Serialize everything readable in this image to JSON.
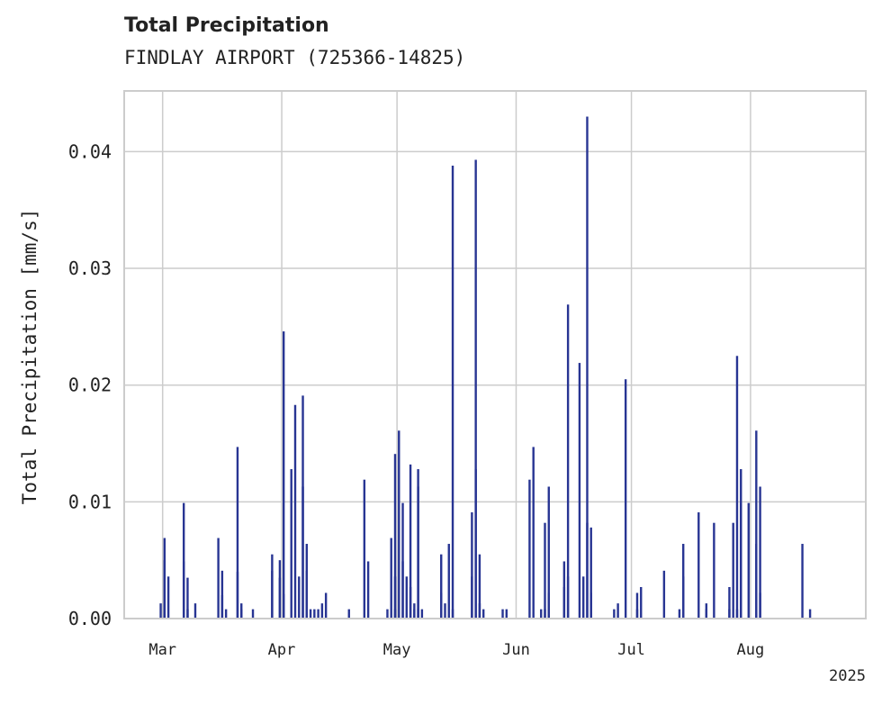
{
  "chart_data": {
    "type": "bar",
    "title": "Total Precipitation",
    "subtitle": "FINDLAY AIRPORT (725366-14825)",
    "ylabel": "Total Precipitation [mm/s]",
    "xlabel": "",
    "year_label": "2025",
    "x_axis": "date",
    "xlim": [
      "2025-02-19",
      "2025-08-31"
    ],
    "ylim": [
      0,
      0.0452
    ],
    "yticks": [
      0.0,
      0.01,
      0.02,
      0.03,
      0.04
    ],
    "ytick_labels": [
      "0.00",
      "0.01",
      "0.02",
      "0.03",
      "0.04"
    ],
    "xticks": [
      "2025-03-01",
      "2025-04-01",
      "2025-05-01",
      "2025-06-01",
      "2025-07-01",
      "2025-08-01"
    ],
    "xtick_labels": [
      "Mar",
      "Apr",
      "May",
      "Jun",
      "Jul",
      "Aug"
    ],
    "grid": true,
    "bar_color": "#283593",
    "series": [
      {
        "points": [
          [
            "2025-02-28",
            0.0013
          ],
          [
            "2025-03-01",
            0.005
          ],
          [
            "2025-03-01",
            0.0069
          ],
          [
            "2025-03-02",
            0.0036
          ],
          [
            "2025-03-06",
            0.0099
          ],
          [
            "2025-03-06",
            0.0049
          ],
          [
            "2025-03-07",
            0.0035
          ],
          [
            "2025-03-07",
            0.0008
          ],
          [
            "2025-03-09",
            0.0013
          ],
          [
            "2025-03-15",
            0.0069
          ],
          [
            "2025-03-16",
            0.0041
          ],
          [
            "2025-03-16",
            0.002
          ],
          [
            "2025-03-17",
            0.0008
          ],
          [
            "2025-03-20",
            0.0147
          ],
          [
            "2025-03-20",
            0.004
          ],
          [
            "2025-03-21",
            0.0013
          ],
          [
            "2025-03-21",
            0.0008
          ],
          [
            "2025-03-24",
            0.0008
          ],
          [
            "2025-03-29",
            0.0041
          ],
          [
            "2025-03-29",
            0.0055
          ],
          [
            "2025-03-31",
            0.005
          ],
          [
            "2025-03-31",
            0.0035
          ],
          [
            "2025-04-01",
            0.0246
          ],
          [
            "2025-04-01",
            0.0021
          ],
          [
            "2025-04-03",
            0.0128
          ],
          [
            "2025-04-04",
            0.0183
          ],
          [
            "2025-04-05",
            0.0036
          ],
          [
            "2025-04-06",
            0.0191
          ],
          [
            "2025-04-06",
            0.0113
          ],
          [
            "2025-04-07",
            0.0064
          ],
          [
            "2025-04-07",
            0.0041
          ],
          [
            "2025-04-08",
            0.0008
          ],
          [
            "2025-04-09",
            0.0008
          ],
          [
            "2025-04-10",
            0.0008
          ],
          [
            "2025-04-11",
            0.0013
          ],
          [
            "2025-04-12",
            0.0022
          ],
          [
            "2025-04-18",
            0.0008
          ],
          [
            "2025-04-22",
            0.0119
          ],
          [
            "2025-04-23",
            0.0049
          ],
          [
            "2025-04-28",
            0.0008
          ],
          [
            "2025-04-29",
            0.0069
          ],
          [
            "2025-04-30",
            0.0141
          ],
          [
            "2025-04-30",
            0.0036
          ],
          [
            "2025-04-30",
            0.0008
          ],
          [
            "2025-05-01",
            0.0161
          ],
          [
            "2025-05-02",
            0.0099
          ],
          [
            "2025-05-02",
            0.0049
          ],
          [
            "2025-05-03",
            0.0036
          ],
          [
            "2025-05-04",
            0.0132
          ],
          [
            "2025-05-04",
            0.0027
          ],
          [
            "2025-05-05",
            0.0008
          ],
          [
            "2025-05-05",
            0.0013
          ],
          [
            "2025-05-06",
            0.0128
          ],
          [
            "2025-05-06",
            0.0113
          ],
          [
            "2025-05-06",
            0.0008
          ],
          [
            "2025-05-07",
            0.0008
          ],
          [
            "2025-05-12",
            0.0055
          ],
          [
            "2025-05-12",
            0.0022
          ],
          [
            "2025-05-13",
            0.0013
          ],
          [
            "2025-05-14",
            0.0064
          ],
          [
            "2025-05-15",
            0.0388
          ],
          [
            "2025-05-15",
            0.0008
          ],
          [
            "2025-05-20",
            0.0036
          ],
          [
            "2025-05-20",
            0.0091
          ],
          [
            "2025-05-21",
            0.0128
          ],
          [
            "2025-05-21",
            0.0393
          ],
          [
            "2025-05-22",
            0.0055
          ],
          [
            "2025-05-22",
            0.0013
          ],
          [
            "2025-05-23",
            0.0008
          ],
          [
            "2025-05-28",
            0.0008
          ],
          [
            "2025-05-29",
            0.0008
          ],
          [
            "2025-06-04",
            0.0119
          ],
          [
            "2025-06-05",
            0.0147
          ],
          [
            "2025-06-07",
            0.0008
          ],
          [
            "2025-06-08",
            0.0008
          ],
          [
            "2025-06-08",
            0.0082
          ],
          [
            "2025-06-09",
            0.0113
          ],
          [
            "2025-06-09",
            0.0022
          ],
          [
            "2025-06-13",
            0.0027
          ],
          [
            "2025-06-13",
            0.0049
          ],
          [
            "2025-06-14",
            0.0269
          ],
          [
            "2025-06-14",
            0.0036
          ],
          [
            "2025-06-17",
            0.0219
          ],
          [
            "2025-06-18",
            0.0036
          ],
          [
            "2025-06-19",
            0.0082
          ],
          [
            "2025-06-19",
            0.043
          ],
          [
            "2025-06-20",
            0.0078
          ],
          [
            "2025-06-20",
            0.0022
          ],
          [
            "2025-06-26",
            0.0008
          ],
          [
            "2025-06-27",
            0.0013
          ],
          [
            "2025-06-29",
            0.0205
          ],
          [
            "2025-07-02",
            0.0022
          ],
          [
            "2025-07-02",
            0.0008
          ],
          [
            "2025-07-03",
            0.0027
          ],
          [
            "2025-07-09",
            0.0041
          ],
          [
            "2025-07-13",
            0.0008
          ],
          [
            "2025-07-14",
            0.0064
          ],
          [
            "2025-07-14",
            0.0036
          ],
          [
            "2025-07-18",
            0.0091
          ],
          [
            "2025-07-20",
            0.0008
          ],
          [
            "2025-07-20",
            0.0013
          ],
          [
            "2025-07-22",
            0.0082
          ],
          [
            "2025-07-26",
            0.0027
          ],
          [
            "2025-07-26",
            0.0008
          ],
          [
            "2025-07-27",
            0.0082
          ],
          [
            "2025-07-28",
            0.0225
          ],
          [
            "2025-07-28",
            0.0008
          ],
          [
            "2025-07-29",
            0.0128
          ],
          [
            "2025-07-29",
            0.0099
          ],
          [
            "2025-07-31",
            0.0099
          ],
          [
            "2025-08-02",
            0.0161
          ],
          [
            "2025-08-02",
            0.0064
          ],
          [
            "2025-08-03",
            0.0113
          ],
          [
            "2025-08-03",
            0.0022
          ],
          [
            "2025-08-14",
            0.0064
          ],
          [
            "2025-08-16",
            0.0008
          ]
        ]
      }
    ]
  }
}
